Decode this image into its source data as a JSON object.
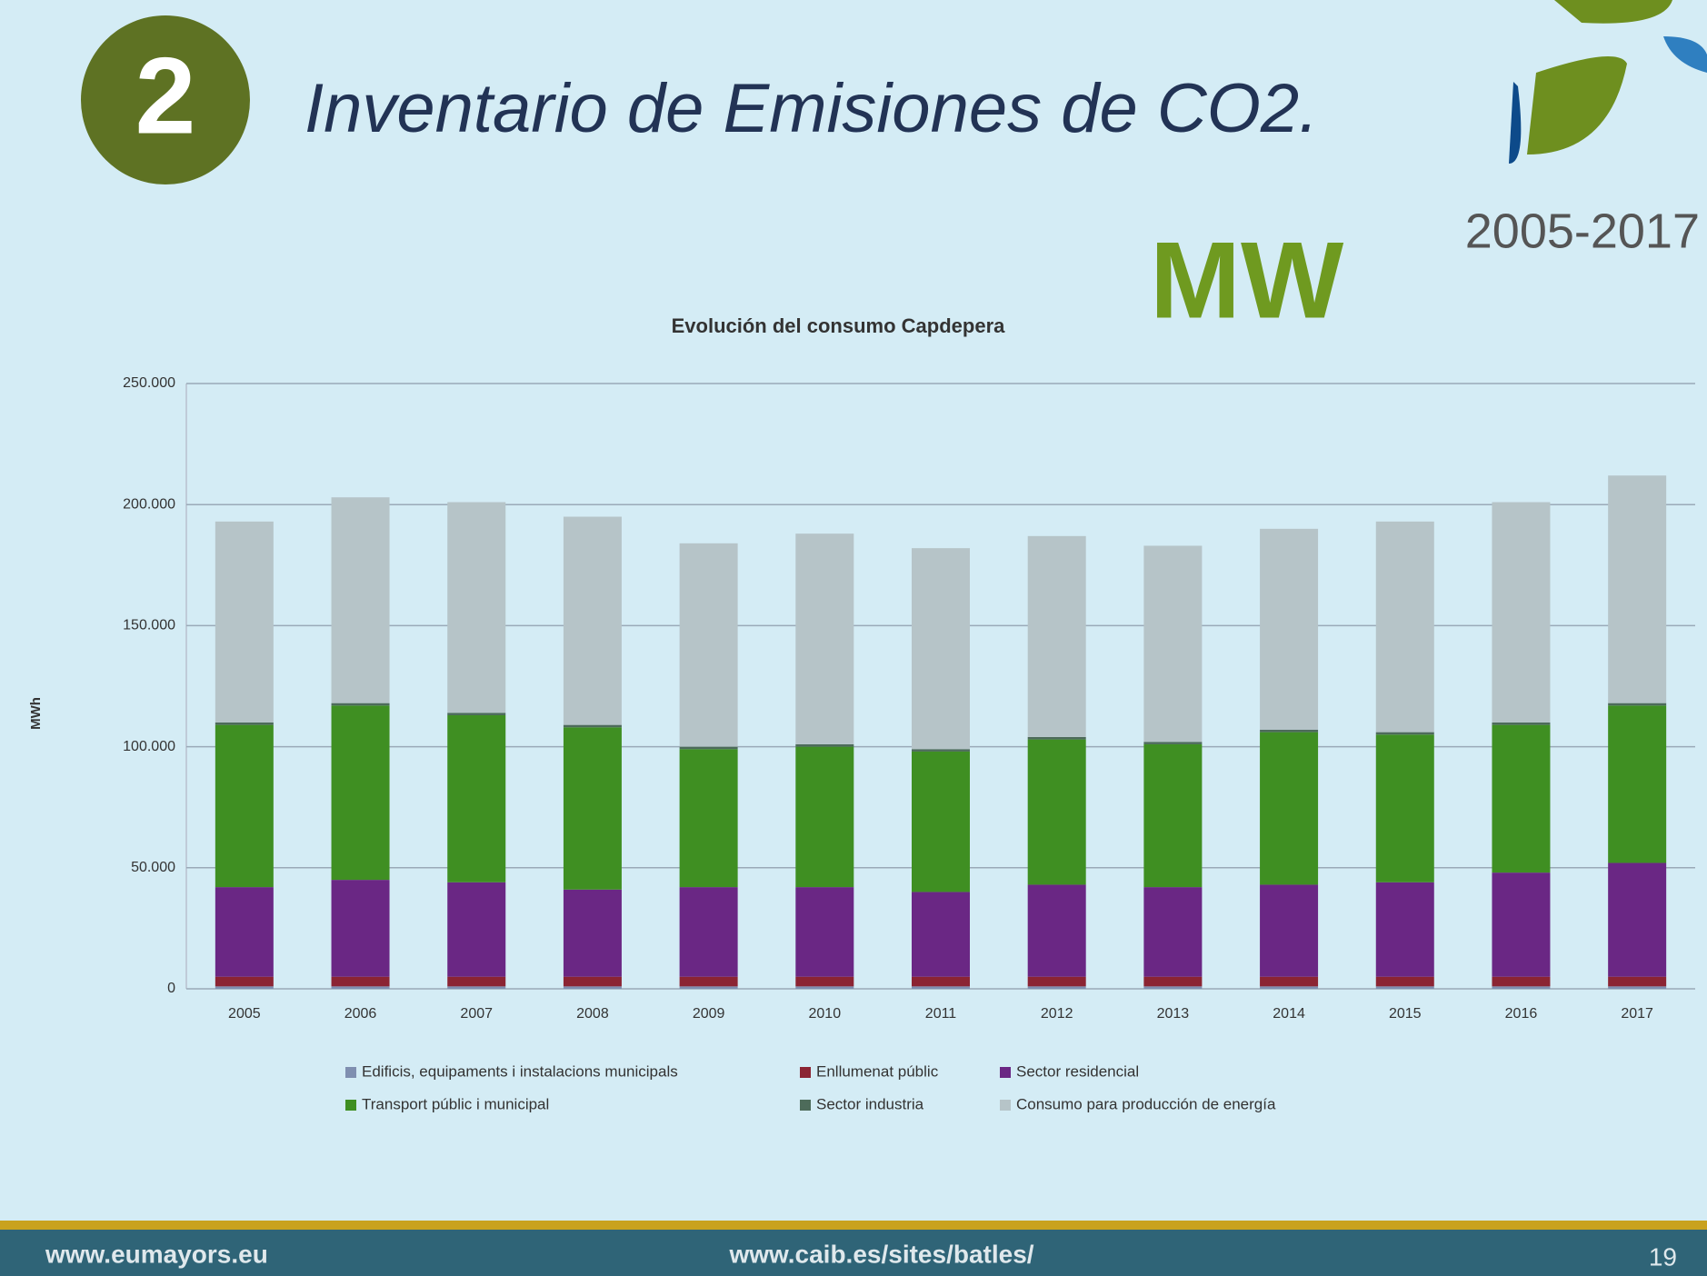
{
  "slide": {
    "number": "2",
    "heading": "Inventario de Emisiones de CO2.",
    "unit": "MW",
    "period": "2005-2017",
    "footer": {
      "left": "www.eumayors.eu",
      "center": "www.caib.es/sites/batles/",
      "page": "19"
    }
  },
  "chart_data": {
    "type": "stacked_bar",
    "title": "Evolución del consumo Capdepera",
    "y_label": "MWh",
    "categories": [
      "2005",
      "2006",
      "2007",
      "2008",
      "2009",
      "2010",
      "2011",
      "2012",
      "2013",
      "2014",
      "2015",
      "2016",
      "2017"
    ],
    "series": [
      {
        "name": "Edificis, equipaments i instalacions municipals",
        "color": "#7f8fb0",
        "values": [
          1000,
          1000,
          1000,
          1000,
          1000,
          1000,
          1000,
          1000,
          1000,
          1000,
          1000,
          1000,
          1000
        ]
      },
      {
        "name": "Enllumenat públic",
        "color": "#8b2433",
        "values": [
          4000,
          4000,
          4000,
          4000,
          4000,
          4000,
          4000,
          4000,
          4000,
          4000,
          4000,
          4000,
          4000
        ]
      },
      {
        "name": "Sector residencial",
        "color": "#6a2784",
        "values": [
          37000,
          40000,
          39000,
          36000,
          37000,
          37000,
          35000,
          38000,
          37000,
          38000,
          39000,
          43000,
          47000
        ]
      },
      {
        "name": "Transport públic i municipal",
        "color": "#3f8f22",
        "values": [
          67000,
          72000,
          69000,
          67000,
          57000,
          58000,
          58000,
          60000,
          59000,
          63000,
          61000,
          61000,
          65000
        ]
      },
      {
        "name": "Sector industria",
        "color": "#4d6b5a",
        "values": [
          1000,
          1000,
          1000,
          1000,
          1000,
          1000,
          1000,
          1000,
          1000,
          1000,
          1000,
          1000,
          1000
        ]
      },
      {
        "name": "Consumo para producción de energía",
        "color": "#b6c4c8",
        "values": [
          83000,
          85000,
          87000,
          86000,
          84000,
          87000,
          83000,
          83000,
          81000,
          83000,
          87000,
          91000,
          94000
        ]
      }
    ],
    "ylim": [
      0,
      250000
    ],
    "yticks": [
      0,
      {
        "value": 50000,
        "label": "50.000"
      },
      {
        "value": 100000,
        "label": "100.000"
      },
      {
        "value": 150000,
        "label": "150.000"
      },
      {
        "value": 200000,
        "label": "200.000"
      },
      {
        "value": 250000,
        "label": "250.000"
      }
    ],
    "grid": true
  }
}
